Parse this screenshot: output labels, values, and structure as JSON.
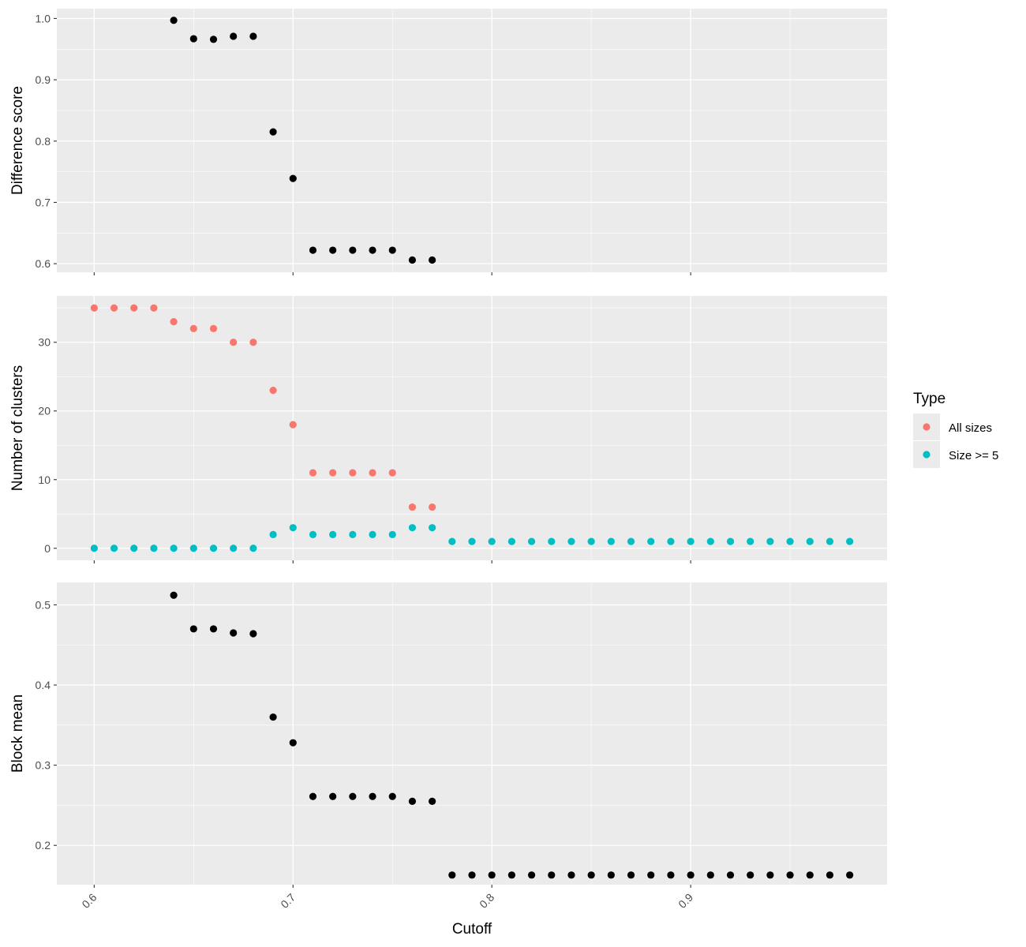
{
  "chart_data": {
    "type": "scatter",
    "layout": "faceted-vertical",
    "shared_x": {
      "label": "Cutoff",
      "ticks": [
        0.6,
        0.7,
        0.8,
        0.9
      ],
      "tick_labels": [
        "0.6",
        "0.7",
        "0.8",
        "0.9"
      ],
      "range": [
        0.5812,
        0.9988
      ],
      "tick_label_angle": -45
    },
    "panel_background": "#ebebeb",
    "grid": true,
    "panels": [
      {
        "name": "difference-score",
        "ylabel": "Difference score",
        "ylim": [
          0.586,
          1.016
        ],
        "yticks": [
          0.6,
          0.7,
          0.8,
          0.9,
          1.0
        ],
        "ytick_labels": [
          "0.6",
          "0.7",
          "0.8",
          "0.9",
          "1.0"
        ],
        "series": [
          {
            "color": "#000000",
            "x": [
              0.64,
              0.65,
              0.66,
              0.67,
              0.68,
              0.69,
              0.7,
              0.71,
              0.72,
              0.73,
              0.74,
              0.75,
              0.76,
              0.77
            ],
            "y": [
              0.997,
              0.967,
              0.966,
              0.971,
              0.971,
              0.815,
              0.739,
              0.622,
              0.622,
              0.622,
              0.622,
              0.622,
              0.606,
              0.606
            ]
          }
        ]
      },
      {
        "name": "number-of-clusters",
        "ylabel": "Number of clusters",
        "ylim": [
          -1.75,
          36.75
        ],
        "yticks": [
          0,
          10,
          20,
          30
        ],
        "ytick_labels": [
          "0",
          "10",
          "20",
          "30"
        ],
        "series": [
          {
            "name": "All sizes",
            "color": "#F8766D",
            "x": [
              0.6,
              0.61,
              0.62,
              0.63,
              0.64,
              0.65,
              0.66,
              0.67,
              0.68,
              0.69,
              0.7,
              0.71,
              0.72,
              0.73,
              0.74,
              0.75,
              0.76,
              0.77
            ],
            "y": [
              35,
              35,
              35,
              35,
              33,
              32,
              32,
              30,
              30,
              23,
              18,
              11,
              11,
              11,
              11,
              11,
              6,
              6
            ]
          },
          {
            "name": "Size >= 5",
            "color": "#00BFC4",
            "x": [
              0.6,
              0.61,
              0.62,
              0.63,
              0.64,
              0.65,
              0.66,
              0.67,
              0.68,
              0.69,
              0.7,
              0.71,
              0.72,
              0.73,
              0.74,
              0.75,
              0.76,
              0.77,
              0.78,
              0.79,
              0.8,
              0.81,
              0.82,
              0.83,
              0.84,
              0.85,
              0.86,
              0.87,
              0.88,
              0.89,
              0.9,
              0.91,
              0.92,
              0.93,
              0.94,
              0.95,
              0.96,
              0.97,
              0.98
            ],
            "y": [
              0,
              0,
              0,
              0,
              0,
              0,
              0,
              0,
              0,
              2,
              3,
              2,
              2,
              2,
              2,
              2,
              3,
              3,
              1,
              1,
              1,
              1,
              1,
              1,
              1,
              1,
              1,
              1,
              1,
              1,
              1,
              1,
              1,
              1,
              1,
              1,
              1,
              1,
              1
            ]
          }
        ]
      },
      {
        "name": "block-mean",
        "ylabel": "Block mean",
        "ylim": [
          0.151,
          0.528
        ],
        "yticks": [
          0.2,
          0.3,
          0.4,
          0.5
        ],
        "ytick_labels": [
          "0.2",
          "0.3",
          "0.4",
          "0.5"
        ],
        "series": [
          {
            "color": "#000000",
            "x": [
              0.64,
              0.65,
              0.66,
              0.67,
              0.68,
              0.69,
              0.7,
              0.71,
              0.72,
              0.73,
              0.74,
              0.75,
              0.76,
              0.77,
              0.78,
              0.79,
              0.8,
              0.81,
              0.82,
              0.83,
              0.84,
              0.85,
              0.86,
              0.87,
              0.88,
              0.89,
              0.9,
              0.91,
              0.92,
              0.93,
              0.94,
              0.95,
              0.96,
              0.97,
              0.98
            ],
            "y": [
              0.512,
              0.47,
              0.47,
              0.465,
              0.464,
              0.36,
              0.328,
              0.261,
              0.261,
              0.261,
              0.261,
              0.261,
              0.255,
              0.255,
              0.163,
              0.163,
              0.163,
              0.163,
              0.163,
              0.163,
              0.163,
              0.163,
              0.163,
              0.163,
              0.163,
              0.163,
              0.163,
              0.163,
              0.163,
              0.163,
              0.163,
              0.163,
              0.163,
              0.163,
              0.163
            ]
          }
        ]
      }
    ],
    "legend": {
      "title": "Type",
      "position": "right",
      "entries": [
        {
          "label": "All sizes",
          "color": "#F8766D"
        },
        {
          "label": "Size >= 5",
          "color": "#00BFC4"
        }
      ]
    }
  }
}
